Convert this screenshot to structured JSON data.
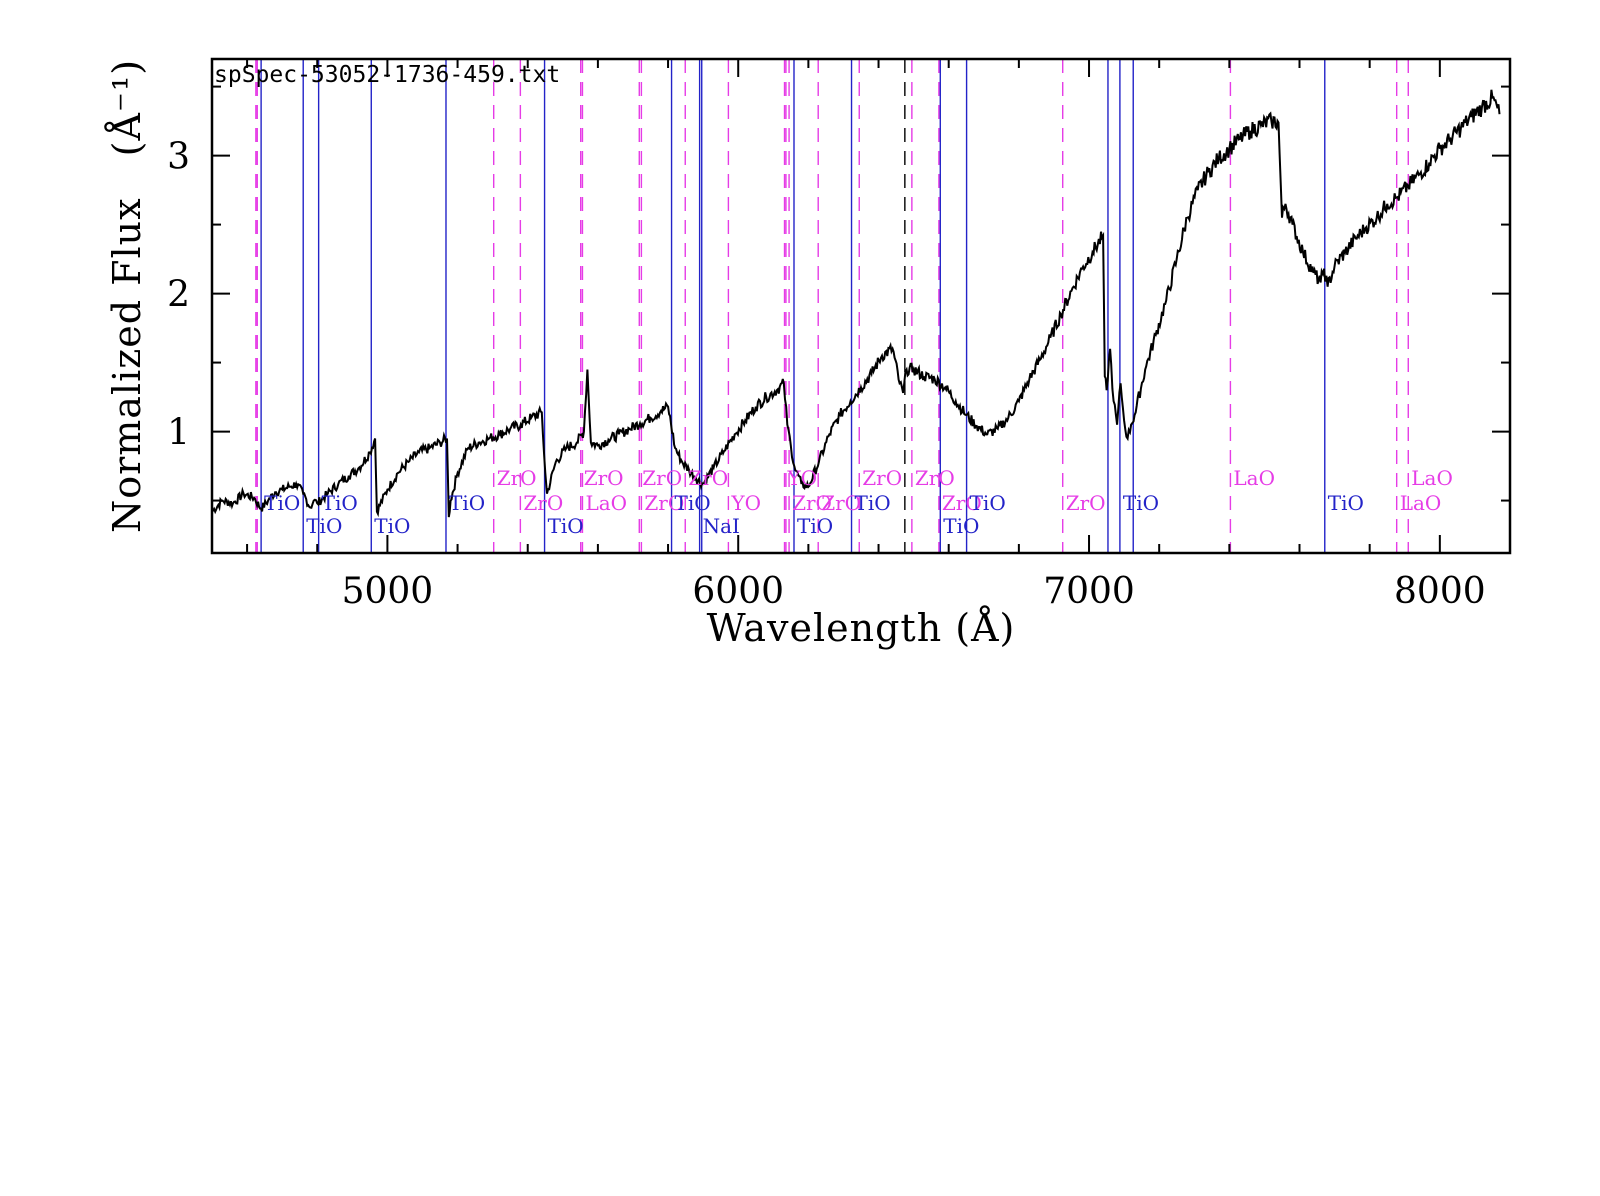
{
  "chart_data": {
    "type": "line",
    "file_label": "spSpec-53052-1736-459.txt",
    "xlabel": "Wavelength (Å)",
    "ylabel": "Normalized Flux",
    "ylabel_unit": "(Å⁻¹)",
    "xlim": [
      4500,
      8200
    ],
    "ylim": [
      0.12,
      3.7
    ],
    "x_ticks": [
      5000,
      6000,
      7000,
      8000
    ],
    "x_tick_labels": [
      "5000",
      "6000",
      "7000",
      "8000"
    ],
    "y_ticks": [
      1,
      2,
      3
    ],
    "y_tick_labels": [
      "1",
      "2",
      "3"
    ],
    "colors": {
      "spectrum": "#000000",
      "TiO": "#2323c8",
      "mol": "#e63ce6",
      "plain": "#000000"
    },
    "spectrum": {
      "name": "",
      "x": [
        4500,
        4530,
        4560,
        4590,
        4620,
        4640,
        4660,
        4680,
        4700,
        4720,
        4740,
        4760,
        4780,
        4790,
        4800,
        4830,
        4860,
        4890,
        4920,
        4950,
        4965,
        4970,
        5000,
        5030,
        5060,
        5090,
        5120,
        5150,
        5170,
        5175,
        5180,
        5200,
        5230,
        5260,
        5290,
        5320,
        5350,
        5380,
        5410,
        5440,
        5450,
        5455,
        5480,
        5510,
        5540,
        5560,
        5570,
        5580,
        5600,
        5630,
        5660,
        5690,
        5720,
        5750,
        5780,
        5800,
        5820,
        5840,
        5860,
        5880,
        5900,
        5930,
        5960,
        5990,
        6020,
        6050,
        6080,
        6110,
        6130,
        6140,
        6150,
        6160,
        6180,
        6200,
        6230,
        6260,
        6290,
        6320,
        6350,
        6380,
        6410,
        6440,
        6460,
        6470,
        6480,
        6500,
        6530,
        6560,
        6590,
        6620,
        6650,
        6680,
        6710,
        6740,
        6770,
        6800,
        6830,
        6860,
        6890,
        6920,
        6950,
        6980,
        7010,
        7040,
        7045,
        7050,
        7060,
        7070,
        7080,
        7090,
        7100,
        7110,
        7120,
        7130,
        7160,
        7190,
        7220,
        7250,
        7280,
        7310,
        7340,
        7370,
        7400,
        7430,
        7460,
        7490,
        7520,
        7540,
        7550,
        7560,
        7580,
        7610,
        7640,
        7660,
        7670,
        7680,
        7700,
        7730,
        7760,
        7790,
        7820,
        7850,
        7880,
        7910,
        7940,
        7970,
        8000,
        8030,
        8060,
        8090,
        8120,
        8150,
        8170
      ],
      "y": [
        0.42,
        0.5,
        0.48,
        0.55,
        0.52,
        0.44,
        0.5,
        0.56,
        0.58,
        0.6,
        0.62,
        0.55,
        0.45,
        0.5,
        0.48,
        0.55,
        0.62,
        0.68,
        0.74,
        0.85,
        0.95,
        0.42,
        0.58,
        0.7,
        0.78,
        0.85,
        0.88,
        0.92,
        0.95,
        0.38,
        0.5,
        0.7,
        0.88,
        0.92,
        0.95,
        0.98,
        1.02,
        1.05,
        1.1,
        1.14,
        0.7,
        0.55,
        0.78,
        0.88,
        0.92,
        1.0,
        1.45,
        0.92,
        0.9,
        0.94,
        0.98,
        1.02,
        1.06,
        1.1,
        1.15,
        1.18,
        0.88,
        0.78,
        0.72,
        0.66,
        0.62,
        0.74,
        0.86,
        0.98,
        1.08,
        1.18,
        1.25,
        1.3,
        1.35,
        1.05,
        0.9,
        0.75,
        0.62,
        0.6,
        0.78,
        0.98,
        1.12,
        1.22,
        1.32,
        1.42,
        1.55,
        1.6,
        1.35,
        1.28,
        1.45,
        1.45,
        1.4,
        1.38,
        1.32,
        1.22,
        1.12,
        1.04,
        0.98,
        1.02,
        1.1,
        1.22,
        1.38,
        1.52,
        1.68,
        1.85,
        2.02,
        2.18,
        2.3,
        2.42,
        1.4,
        1.3,
        1.6,
        1.22,
        1.05,
        1.35,
        1.08,
        0.95,
        1.05,
        1.12,
        1.45,
        1.7,
        1.95,
        2.25,
        2.55,
        2.75,
        2.88,
        2.98,
        3.05,
        3.12,
        3.18,
        3.22,
        3.25,
        3.24,
        2.55,
        2.65,
        2.5,
        2.3,
        2.15,
        2.08,
        2.18,
        2.05,
        2.2,
        2.3,
        2.4,
        2.48,
        2.55,
        2.65,
        2.7,
        2.78,
        2.86,
        2.95,
        3.05,
        3.12,
        3.2,
        3.28,
        3.35,
        3.42,
        3.3
      ]
    },
    "lines": [
      {
        "x": 4625,
        "label": "",
        "style": "mol"
      },
      {
        "x": 4629,
        "label": "",
        "style": "mol"
      },
      {
        "x": 4640,
        "label": "TiO",
        "style": "TiO",
        "row": 1
      },
      {
        "x": 4760,
        "label": "TiO",
        "style": "TiO",
        "row": 2
      },
      {
        "x": 4804,
        "label": "TiO",
        "style": "TiO",
        "row": 1
      },
      {
        "x": 4954,
        "label": "TiO",
        "style": "TiO",
        "row": 2
      },
      {
        "x": 5167,
        "label": "TiO",
        "style": "TiO",
        "row": 1
      },
      {
        "x": 5303,
        "label": "ZrO",
        "style": "mol",
        "row": 0
      },
      {
        "x": 5379,
        "label": "ZrO",
        "style": "mol",
        "row": 1
      },
      {
        "x": 5448,
        "label": "TiO",
        "style": "TiO",
        "row": 2
      },
      {
        "x": 5551,
        "label": "ZrO",
        "style": "mol",
        "row": 0
      },
      {
        "x": 5556,
        "label": "LaO",
        "style": "mol",
        "row": 1
      },
      {
        "x": 5718,
        "label": "ZrO",
        "style": "mol",
        "row": 0
      },
      {
        "x": 5724,
        "label": "ZrO",
        "style": "mol",
        "row": 1
      },
      {
        "x": 5810,
        "label": "TiO",
        "style": "TiO",
        "row": 1
      },
      {
        "x": 5849,
        "label": "ZrO",
        "style": "mol",
        "row": 0
      },
      {
        "x": 5890,
        "label": "NaI",
        "style": "TiO",
        "row": 2
      },
      {
        "x": 5896,
        "label": "",
        "style": "TiO"
      },
      {
        "x": 5972,
        "label": "YO",
        "style": "mol",
        "row": 1
      },
      {
        "x": 6132,
        "label": "YO",
        "style": "mol",
        "row": 0
      },
      {
        "x": 6136,
        "label": "",
        "style": "mol"
      },
      {
        "x": 6145,
        "label": "ZrO",
        "style": "mol",
        "row": 1
      },
      {
        "x": 6159,
        "label": "TiO",
        "style": "TiO",
        "row": 2
      },
      {
        "x": 6228,
        "label": "ZrO",
        "style": "mol",
        "row": 1
      },
      {
        "x": 6323,
        "label": "TiO",
        "style": "TiO",
        "row": 1
      },
      {
        "x": 6345,
        "label": "ZrO",
        "style": "mol",
        "row": 0
      },
      {
        "x": 6475,
        "label": "",
        "style": "plain"
      },
      {
        "x": 6495,
        "label": "ZrO",
        "style": "mol",
        "row": 0
      },
      {
        "x": 6572,
        "label": "ZrO",
        "style": "mol",
        "row": 1
      },
      {
        "x": 6576,
        "label": "TiO",
        "style": "TiO",
        "row": 2
      },
      {
        "x": 6651,
        "label": "TiO",
        "style": "TiO",
        "row": 1
      },
      {
        "x": 6925,
        "label": "ZrO",
        "style": "mol",
        "row": 1
      },
      {
        "x": 7054,
        "label": "",
        "style": "TiO"
      },
      {
        "x": 7088,
        "label": "TiO",
        "style": "TiO",
        "row": 1
      },
      {
        "x": 7126,
        "label": "",
        "style": "TiO"
      },
      {
        "x": 7403,
        "label": "LaO",
        "style": "mol",
        "row": 0
      },
      {
        "x": 7672,
        "label": "TiO",
        "style": "TiO",
        "row": 1
      },
      {
        "x": 7877,
        "label": "LaO",
        "style": "mol",
        "row": 1
      },
      {
        "x": 7910,
        "label": "LaO",
        "style": "mol",
        "row": 0
      }
    ]
  }
}
